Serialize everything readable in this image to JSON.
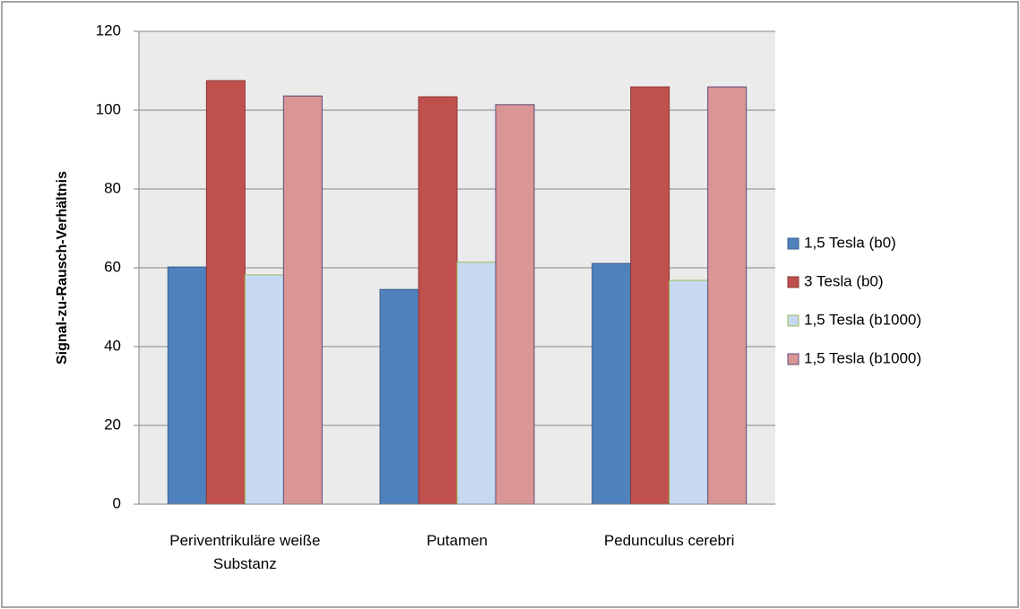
{
  "chart_data": {
    "type": "bar",
    "y_label": "Signal-zu-Rausch-Verhältnis",
    "categories": [
      "Periventrikuläre weiße Substanz",
      "Putamen",
      "Pedunculus cerebri"
    ],
    "series": [
      {
        "name": "1,5 Tesla (b0)",
        "color": "#4f81bd",
        "edge": "#385d8a",
        "values": [
          60.2,
          54.5,
          61.1
        ]
      },
      {
        "name": "3 Tesla (b0)",
        "color": "#c0504d",
        "edge": "#8c3836",
        "values": [
          107.5,
          103.4,
          105.9
        ]
      },
      {
        "name": "1,5 Tesla (b1000)",
        "color": "#c6d9f1",
        "edge": "#9bbb59",
        "values": [
          58.2,
          61.4,
          56.8
        ]
      },
      {
        "name": "1,5 Tesla (b1000)",
        "color": "#d99694",
        "edge": "#5f497a",
        "values": [
          103.6,
          101.4,
          105.9
        ]
      }
    ],
    "ylim": [
      0,
      120
    ],
    "yticks": [
      0,
      20,
      40,
      60,
      80,
      100,
      120
    ],
    "grid": true,
    "legend": "right"
  }
}
